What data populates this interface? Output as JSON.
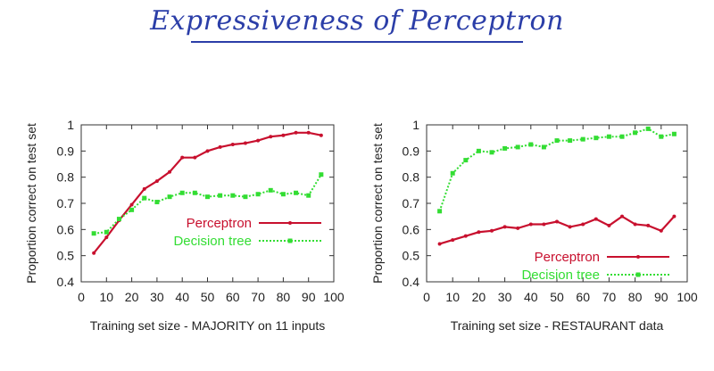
{
  "slide": {
    "title": "Expressiveness of Perceptron",
    "colors": {
      "title": "#2b3ea8",
      "perceptron": "#c8102e",
      "decision_tree": "#33dd33"
    }
  },
  "chart_data": [
    {
      "type": "line",
      "title": "",
      "xlabel": "Training set size - MAJORITY on 11 inputs",
      "ylabel": "Proportion correct on test set",
      "xlim": [
        0,
        100
      ],
      "ylim": [
        0.4,
        1.0
      ],
      "xticks": [
        0,
        10,
        20,
        30,
        40,
        50,
        60,
        70,
        80,
        90,
        100
      ],
      "yticks": [
        0.4,
        0.5,
        0.6,
        0.7,
        0.8,
        0.9,
        1.0
      ],
      "ytick_labels": [
        "0.4",
        "0.5",
        "0.6",
        "0.7",
        "0.8",
        "0.9",
        "1"
      ],
      "legend_position": "center-right",
      "series": [
        {
          "name": "Perceptron",
          "color": "#c8102e",
          "style": "solid",
          "x": [
            5,
            10,
            15,
            20,
            25,
            30,
            35,
            40,
            45,
            50,
            55,
            60,
            65,
            70,
            75,
            80,
            85,
            90,
            95
          ],
          "y": [
            0.51,
            0.57,
            0.635,
            0.695,
            0.755,
            0.785,
            0.82,
            0.875,
            0.875,
            0.9,
            0.915,
            0.925,
            0.93,
            0.94,
            0.955,
            0.96,
            0.97,
            0.97,
            0.96
          ]
        },
        {
          "name": "Decision tree",
          "color": "#33dd33",
          "style": "dotted",
          "x": [
            5,
            10,
            15,
            20,
            25,
            30,
            35,
            40,
            45,
            50,
            55,
            60,
            65,
            70,
            75,
            80,
            85,
            90,
            95
          ],
          "y": [
            0.585,
            0.59,
            0.64,
            0.675,
            0.72,
            0.705,
            0.725,
            0.74,
            0.74,
            0.725,
            0.73,
            0.73,
            0.725,
            0.735,
            0.75,
            0.735,
            0.74,
            0.73,
            0.81
          ]
        }
      ]
    },
    {
      "type": "line",
      "title": "",
      "xlabel": "Training set size - RESTAURANT data",
      "ylabel": "Proportion correct on test set",
      "xlim": [
        0,
        100
      ],
      "ylim": [
        0.4,
        1.0
      ],
      "xticks": [
        0,
        10,
        20,
        30,
        40,
        50,
        60,
        70,
        80,
        90,
        100
      ],
      "yticks": [
        0.4,
        0.5,
        0.6,
        0.7,
        0.8,
        0.9,
        1.0
      ],
      "ytick_labels": [
        "0.4",
        "0.5",
        "0.6",
        "0.7",
        "0.8",
        "0.9",
        "1"
      ],
      "legend_position": "bottom-right",
      "series": [
        {
          "name": "Perceptron",
          "color": "#c8102e",
          "style": "solid",
          "x": [
            5,
            10,
            15,
            20,
            25,
            30,
            35,
            40,
            45,
            50,
            55,
            60,
            65,
            70,
            75,
            80,
            85,
            90,
            95
          ],
          "y": [
            0.545,
            0.56,
            0.575,
            0.59,
            0.595,
            0.61,
            0.605,
            0.62,
            0.62,
            0.63,
            0.61,
            0.62,
            0.64,
            0.615,
            0.65,
            0.62,
            0.615,
            0.595,
            0.65
          ]
        },
        {
          "name": "Decision tree",
          "color": "#33dd33",
          "style": "dotted",
          "x": [
            5,
            10,
            15,
            20,
            25,
            30,
            35,
            40,
            45,
            50,
            55,
            60,
            65,
            70,
            75,
            80,
            85,
            90,
            95
          ],
          "y": [
            0.67,
            0.815,
            0.865,
            0.9,
            0.895,
            0.91,
            0.915,
            0.925,
            0.915,
            0.94,
            0.94,
            0.945,
            0.95,
            0.955,
            0.955,
            0.97,
            0.985,
            0.955,
            0.965
          ]
        }
      ]
    }
  ]
}
